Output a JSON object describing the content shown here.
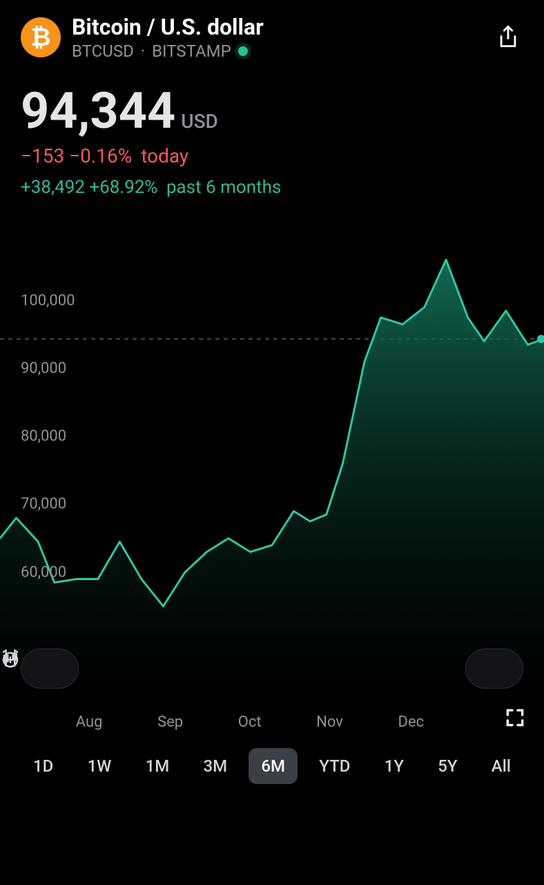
{
  "header": {
    "coin_symbol": "₿",
    "coin_icon_bg": "#f7931a",
    "title": "Bitcoin / U.S. dollar",
    "ticker": "BTCUSD",
    "separator": "·",
    "exchange": "BITSTAMP",
    "status_color": "#22c597"
  },
  "price": {
    "value": "94,344",
    "currency": "USD",
    "today_change": "−153 −0.16%",
    "today_label": "today",
    "today_color": "#f55b5b",
    "period_change": "+38,492 +68.92%",
    "period_label": "past 6 months",
    "period_color": "#2fb99a"
  },
  "chart": {
    "type": "area",
    "line_color": "#2fc7a1",
    "fill_top": "#157a60",
    "fill_bottom": "#031a15",
    "background": "#000000",
    "dashed_line_color": "#5a5f66",
    "current_marker_color": "#2fc7a1",
    "ymin": 50000,
    "ymax": 108000,
    "yticks": [
      60000,
      70000,
      80000,
      90000,
      100000
    ],
    "ytick_labels": [
      "60,000",
      "70,000",
      "80,000",
      "90,000",
      "100,000"
    ],
    "current_value": 94344,
    "x_labels": [
      "Aug",
      "Sep",
      "Oct",
      "Nov",
      "Dec"
    ],
    "points": [
      [
        0.0,
        65000
      ],
      [
        0.03,
        68000
      ],
      [
        0.07,
        64500
      ],
      [
        0.1,
        58500
      ],
      [
        0.14,
        59000
      ],
      [
        0.18,
        59000
      ],
      [
        0.22,
        64500
      ],
      [
        0.26,
        59000
      ],
      [
        0.3,
        55000
      ],
      [
        0.34,
        60000
      ],
      [
        0.38,
        63000
      ],
      [
        0.42,
        65000
      ],
      [
        0.46,
        63000
      ],
      [
        0.5,
        64000
      ],
      [
        0.54,
        69000
      ],
      [
        0.57,
        67500
      ],
      [
        0.6,
        68500
      ],
      [
        0.63,
        76000
      ],
      [
        0.67,
        91000
      ],
      [
        0.7,
        97500
      ],
      [
        0.74,
        96500
      ],
      [
        0.78,
        99000
      ],
      [
        0.82,
        106000
      ],
      [
        0.86,
        97500
      ],
      [
        0.89,
        94000
      ],
      [
        0.93,
        98500
      ],
      [
        0.97,
        93500
      ],
      [
        1.0,
        94344
      ]
    ]
  },
  "ranges": {
    "options": [
      "1D",
      "1W",
      "1M",
      "3M",
      "6M",
      "YTD",
      "1Y",
      "5Y",
      "All"
    ],
    "active": "6M"
  }
}
